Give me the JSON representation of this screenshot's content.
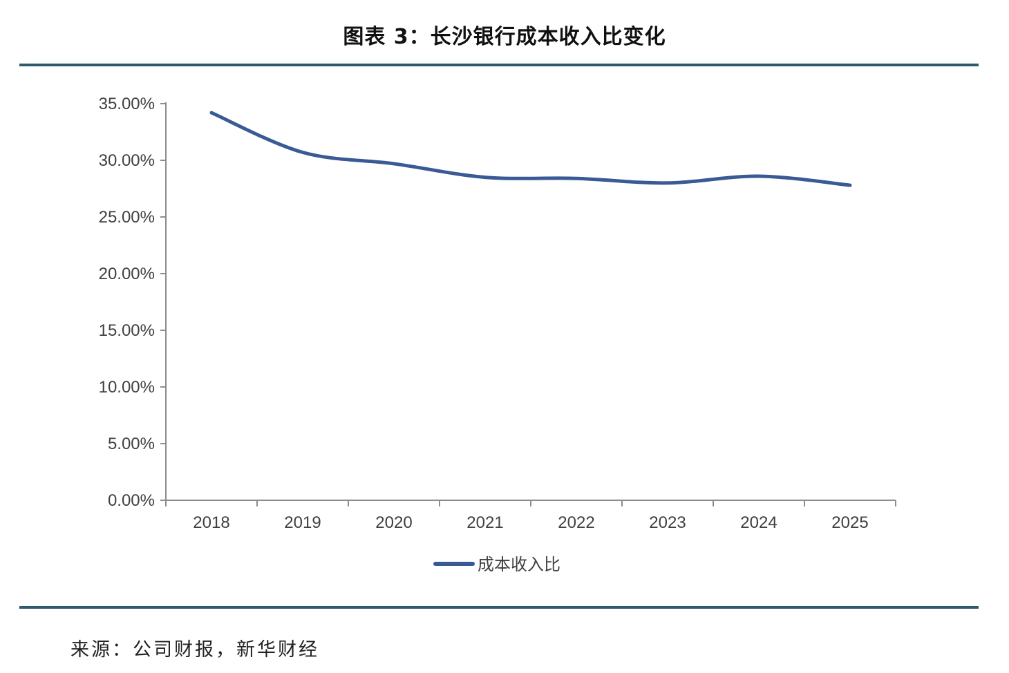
{
  "figure": {
    "title": "图表 3：长沙银行成本收入比变化",
    "source": "来源：公司财报，新华财经"
  },
  "chart_data": {
    "type": "line",
    "x": [
      "2018",
      "2019",
      "2020",
      "2021",
      "2022",
      "2023",
      "2024",
      "2025"
    ],
    "series": [
      {
        "name": "成本收入比",
        "color": "#3a5a95",
        "values": [
          34.2,
          30.7,
          29.7,
          28.5,
          28.4,
          28.0,
          28.6,
          27.8
        ]
      }
    ],
    "yticks": [
      "0.00%",
      "5.00%",
      "10.00%",
      "15.00%",
      "20.00%",
      "25.00%",
      "30.00%",
      "35.00%"
    ],
    "ylim": [
      0,
      35
    ],
    "legend_position": "bottom",
    "grid": false
  }
}
